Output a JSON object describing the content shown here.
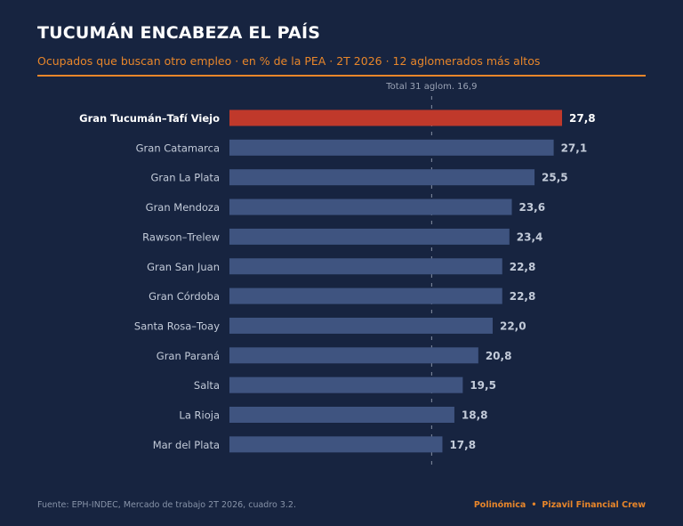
{
  "header": {
    "title": "TUCUMÁN ENCABEZA EL PAÍS",
    "subtitle": "Ocupados que buscan otro empleo · en % de la PEA · 2T 2026 · 12 aglomerados más altos"
  },
  "footer": {
    "source": "Fuente: EPH-INDEC, Mercado de trabajo 2T 2026, cuadro 3.2.",
    "brand_left": "Polinómica",
    "separator": "•",
    "brand_right": "Pizavil Financial Crew"
  },
  "colors": {
    "background": "#172440",
    "accent": "#e8862a",
    "highlight_bar": "#c0392b",
    "bar": "#3f5480",
    "label": "#c3cbd9",
    "value": "#c3cbd9",
    "highlight_text": "#ffffff",
    "reference": "#9aa3b5"
  },
  "chart_data": {
    "type": "bar",
    "orientation": "horizontal",
    "categories": [
      "Gran Tucumán–Tafí Viejo",
      "Gran Catamarca",
      "Gran La Plata",
      "Gran Mendoza",
      "Rawson–Trelew",
      "Gran San Juan",
      "Gran Córdoba",
      "Santa Rosa–Toay",
      "Gran Paraná",
      "Salta",
      "La Rioja",
      "Mar del Plata"
    ],
    "values": [
      27.8,
      27.1,
      25.5,
      23.6,
      23.4,
      22.8,
      22.8,
      22.0,
      20.8,
      19.5,
      18.8,
      17.8
    ],
    "value_labels": [
      "27,8",
      "27,1",
      "25,5",
      "23,6",
      "23,4",
      "22,8",
      "22,8",
      "22,0",
      "20,8",
      "19,5",
      "18,8",
      "17,8"
    ],
    "highlight_index": 0,
    "xlim": [
      0,
      27.8
    ],
    "reference_line": {
      "value": 16.9,
      "label": "Total 31 aglom.  16,9"
    },
    "grid": false,
    "legend": "none"
  }
}
